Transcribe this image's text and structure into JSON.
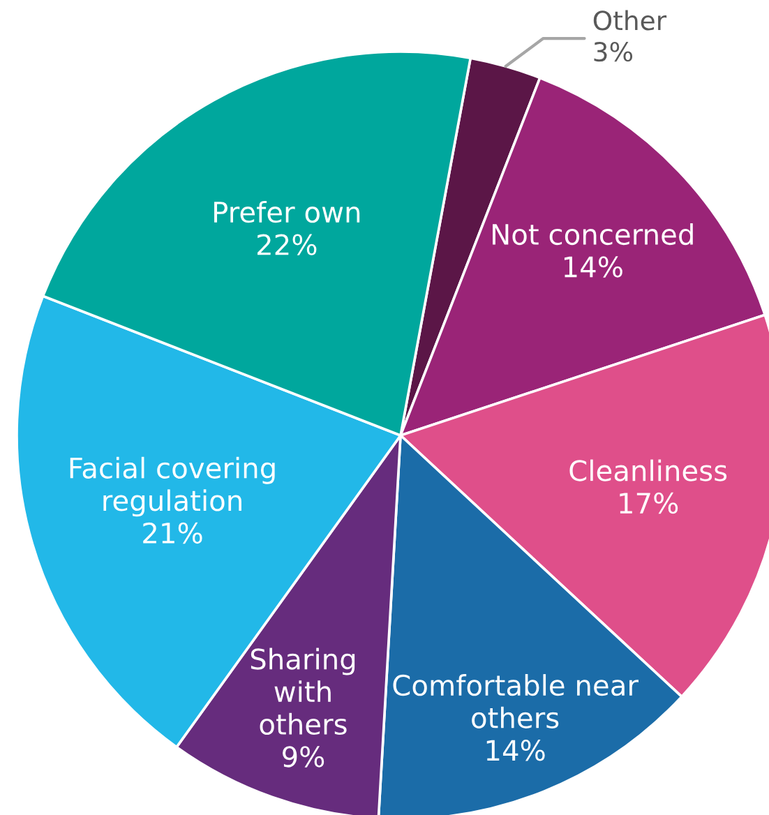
{
  "chart_data": {
    "type": "pie",
    "categories": [
      "Other",
      "Not concerned",
      "Cleanliness",
      "Comfortable near\nothers",
      "Sharing\nwith\nothers",
      "Facial covering\nregulation",
      "Prefer own"
    ],
    "values": [
      3,
      14,
      17,
      14,
      9,
      21,
      22
    ],
    "colors": [
      "#5b1647",
      "#9a2477",
      "#df4f8a",
      "#1b6ca8",
      "#662c7d",
      "#22b8e8",
      "#00a79d"
    ],
    "value_labels": [
      "3%",
      "14%",
      "17%",
      "14%",
      "9%",
      "21%",
      "22%"
    ]
  }
}
